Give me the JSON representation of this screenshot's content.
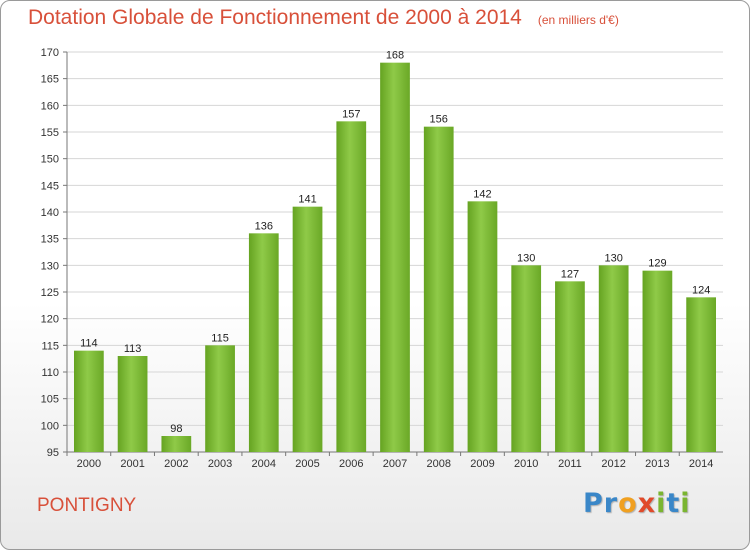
{
  "chart_data": {
    "type": "bar",
    "title": "Dotation Globale de Fonctionnement de 2000 à 2014",
    "subtitle": "(en milliers d'€)",
    "categories": [
      "2000",
      "2001",
      "2002",
      "2003",
      "2004",
      "2005",
      "2006",
      "2007",
      "2008",
      "2009",
      "2010",
      "2011",
      "2012",
      "2013",
      "2014"
    ],
    "values": [
      114,
      113,
      98,
      115,
      136,
      141,
      157,
      168,
      156,
      142,
      130,
      127,
      130,
      129,
      124
    ],
    "ylim": [
      95,
      170
    ],
    "yticks": [
      95,
      100,
      105,
      110,
      115,
      120,
      125,
      130,
      135,
      140,
      145,
      150,
      155,
      160,
      165,
      170
    ],
    "xlabel": "",
    "ylabel": "",
    "grid": true,
    "bar_color": "#7dba3a"
  },
  "commune": "PONTIGNY",
  "logo": {
    "letters": [
      "P",
      "r",
      "o",
      "x",
      "i",
      "t",
      "i"
    ],
    "colors": [
      "#3a87c8",
      "#3a87c8",
      "#f0a020",
      "#e04a2a",
      "#7ab530",
      "#3a87c8",
      "#7ab530"
    ]
  }
}
